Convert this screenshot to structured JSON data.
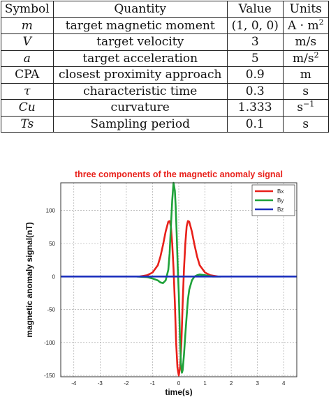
{
  "table": {
    "headers": [
      "Symbol",
      "Quantity",
      "Value",
      "Units"
    ],
    "rows": [
      {
        "symbol": "m",
        "quantity": "target magnetic moment",
        "value": "(1, 0, 0)",
        "unit": "A · m",
        "unit_sup": "2"
      },
      {
        "symbol": "V",
        "quantity": "target velocity",
        "value": "3",
        "unit": "m/s",
        "unit_sup": ""
      },
      {
        "symbol": "a",
        "quantity": "target acceleration",
        "value": "5",
        "unit": "m/s",
        "unit_sup": "2"
      },
      {
        "symbol": "CPA",
        "quantity": "closest proximity approach",
        "value": "0.9",
        "unit": "m",
        "unit_sup": ""
      },
      {
        "symbol": "τ",
        "quantity": "characteristic time",
        "value": "0.3",
        "unit": "s",
        "unit_sup": ""
      },
      {
        "symbol": "Cu",
        "quantity": "curvature",
        "value": "1.333",
        "unit": "s",
        "unit_sup": "−1"
      },
      {
        "symbol": "Ts",
        "quantity": "Sampling period",
        "value": "0.1",
        "unit": "s",
        "unit_sup": ""
      }
    ],
    "italic_symbols": [
      "m",
      "V",
      "a",
      "τ",
      "Cu",
      "Ts"
    ]
  },
  "chart_data": {
    "type": "line",
    "title": "three components of the magnetic anomaly signal",
    "xlabel": "time(s)",
    "ylabel": "magnetic anomaly signal(nT)",
    "xlim": [
      -4.5,
      4.5
    ],
    "ylim": [
      -152,
      142
    ],
    "xticks": [
      -4,
      -3,
      -2,
      -1,
      0,
      1,
      2,
      3,
      4
    ],
    "yticks": [
      -150,
      -100,
      -50,
      0,
      50,
      100
    ],
    "grid": true,
    "legend_position": "top-right",
    "series": [
      {
        "name": "Bx",
        "color": "#e8201a",
        "x": [
          -1.5,
          -1.2,
          -1.0,
          -0.8,
          -0.7,
          -0.6,
          -0.5,
          -0.4,
          -0.35,
          -0.3,
          -0.25,
          -0.2,
          -0.15,
          -0.1,
          -0.05,
          0,
          0.05,
          0.1,
          0.15,
          0.2,
          0.25,
          0.3,
          0.35,
          0.4,
          0.5,
          0.6,
          0.7,
          0.8,
          1.0,
          1.2,
          1.5
        ],
        "y": [
          0,
          2,
          6,
          17,
          30,
          48,
          68,
          83,
          84,
          76,
          50,
          12,
          -40,
          -100,
          -138,
          -150,
          -138,
          -100,
          -40,
          12,
          50,
          76,
          84,
          83,
          68,
          48,
          30,
          17,
          6,
          2,
          0
        ]
      },
      {
        "name": "By",
        "color": "#1fa23a",
        "x": [
          -1.6,
          -1.2,
          -1.0,
          -0.8,
          -0.7,
          -0.6,
          -0.5,
          -0.4,
          -0.35,
          -0.3,
          -0.25,
          -0.2,
          -0.15,
          -0.12,
          -0.08,
          -0.04,
          0,
          0.04,
          0.08,
          0.12,
          0.15,
          0.2,
          0.25,
          0.3,
          0.35,
          0.4,
          0.5,
          0.6,
          0.7,
          0.8,
          1.0,
          1.3,
          1.6
        ],
        "y": [
          0,
          -1,
          -3,
          -6,
          -9,
          -10,
          -6,
          10,
          35,
          75,
          115,
          142,
          130,
          108,
          65,
          15,
          -25,
          -85,
          -130,
          -146,
          -142,
          -118,
          -88,
          -60,
          -35,
          -20,
          -6,
          0,
          2,
          3,
          2,
          0,
          0
        ]
      },
      {
        "name": "Bz",
        "color": "#1a2fbd",
        "x": [
          -4.5,
          4.5
        ],
        "y": [
          0,
          0
        ]
      }
    ]
  }
}
